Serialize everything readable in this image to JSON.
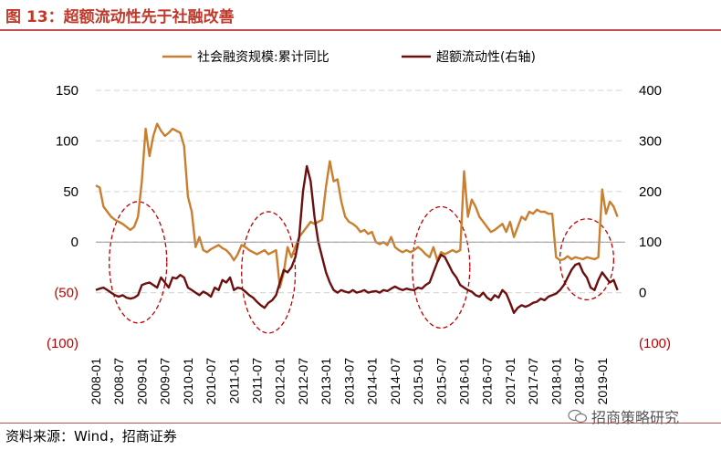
{
  "header": {
    "title": "图 13：超额流动性先于社融改善"
  },
  "footer": {
    "source": "资料来源：Wind，招商证券",
    "watermark": "招商策略研究"
  },
  "colors": {
    "series1": "#c97f2e",
    "series2": "#6b0f0f",
    "negative_tick": "#c00000",
    "circle": "#c00000",
    "grid": "#d9d9d9",
    "title": "#c0392b"
  },
  "chart_data": {
    "type": "line",
    "title": "",
    "legend_position": "top",
    "grid": true,
    "left_axis": {
      "ylim": [
        -100,
        150
      ],
      "ticks": [
        150,
        100,
        50,
        0,
        -50,
        -100
      ],
      "tick_labels": [
        "150",
        "100",
        "50",
        "0",
        "(50)",
        "(100)"
      ]
    },
    "right_axis": {
      "ylim": [
        -100,
        400
      ],
      "ticks": [
        400,
        300,
        200,
        100,
        0,
        -100
      ],
      "tick_labels": [
        "400",
        "300",
        "200",
        "100",
        "0",
        "(100)"
      ]
    },
    "x_tick_labels": [
      "2008-01",
      "2008-07",
      "2009-01",
      "2009-07",
      "2010-01",
      "2010-07",
      "2011-01",
      "2011-07",
      "2012-01",
      "2012-07",
      "2013-01",
      "2013-07",
      "2014-01",
      "2014-07",
      "2015-01",
      "2015-07",
      "2016-01",
      "2016-07",
      "2017-01",
      "2017-07",
      "2018-01",
      "2018-07",
      "2019-01"
    ],
    "x_start": "2008-01",
    "x_end": "2019-07",
    "series": [
      {
        "name": "社会融资规模:累计同比",
        "axis": "left",
        "points": [
          [
            "2008-01",
            56
          ],
          [
            "2008-02",
            54
          ],
          [
            "2008-03",
            35
          ],
          [
            "2008-04",
            30
          ],
          [
            "2008-05",
            25
          ],
          [
            "2008-06",
            22
          ],
          [
            "2008-07",
            20
          ],
          [
            "2008-08",
            18
          ],
          [
            "2008-09",
            15
          ],
          [
            "2008-10",
            12
          ],
          [
            "2008-11",
            15
          ],
          [
            "2008-12",
            25
          ],
          [
            "2009-01",
            60
          ],
          [
            "2009-02",
            112
          ],
          [
            "2009-03",
            85
          ],
          [
            "2009-04",
            105
          ],
          [
            "2009-05",
            117
          ],
          [
            "2009-06",
            110
          ],
          [
            "2009-07",
            105
          ],
          [
            "2009-08",
            108
          ],
          [
            "2009-09",
            112
          ],
          [
            "2009-10",
            110
          ],
          [
            "2009-11",
            108
          ],
          [
            "2009-12",
            95
          ],
          [
            "2010-01",
            45
          ],
          [
            "2010-02",
            30
          ],
          [
            "2010-03",
            -5
          ],
          [
            "2010-04",
            5
          ],
          [
            "2010-05",
            -8
          ],
          [
            "2010-06",
            -10
          ],
          [
            "2010-07",
            -7
          ],
          [
            "2010-08",
            -5
          ],
          [
            "2010-09",
            -3
          ],
          [
            "2010-10",
            -6
          ],
          [
            "2010-11",
            -8
          ],
          [
            "2010-12",
            -12
          ],
          [
            "2011-01",
            -18
          ],
          [
            "2011-02",
            -12
          ],
          [
            "2011-03",
            -3
          ],
          [
            "2011-04",
            -5
          ],
          [
            "2011-05",
            -8
          ],
          [
            "2011-06",
            -10
          ],
          [
            "2011-07",
            -12
          ],
          [
            "2011-08",
            -10
          ],
          [
            "2011-09",
            -8
          ],
          [
            "2011-10",
            -12
          ],
          [
            "2011-11",
            -10
          ],
          [
            "2011-12",
            -8
          ],
          [
            "2012-01",
            -45
          ],
          [
            "2012-02",
            -30
          ],
          [
            "2012-03",
            -5
          ],
          [
            "2012-04",
            -15
          ],
          [
            "2012-05",
            -5
          ],
          [
            "2012-06",
            5
          ],
          [
            "2012-07",
            10
          ],
          [
            "2012-08",
            15
          ],
          [
            "2012-09",
            20
          ],
          [
            "2012-10",
            18
          ],
          [
            "2012-11",
            20
          ],
          [
            "2012-12",
            22
          ],
          [
            "2013-01",
            55
          ],
          [
            "2013-02",
            80
          ],
          [
            "2013-03",
            60
          ],
          [
            "2013-04",
            62
          ],
          [
            "2013-05",
            40
          ],
          [
            "2013-06",
            25
          ],
          [
            "2013-07",
            20
          ],
          [
            "2013-08",
            18
          ],
          [
            "2013-09",
            15
          ],
          [
            "2013-10",
            10
          ],
          [
            "2013-11",
            12
          ],
          [
            "2013-12",
            8
          ],
          [
            "2014-01",
            10
          ],
          [
            "2014-02",
            0
          ],
          [
            "2014-03",
            -2
          ],
          [
            "2014-04",
            0
          ],
          [
            "2014-05",
            -3
          ],
          [
            "2014-06",
            5
          ],
          [
            "2014-07",
            -5
          ],
          [
            "2014-08",
            -8
          ],
          [
            "2014-09",
            -10
          ],
          [
            "2014-10",
            -8
          ],
          [
            "2014-11",
            -10
          ],
          [
            "2014-12",
            -8
          ],
          [
            "2015-01",
            -5
          ],
          [
            "2015-02",
            -8
          ],
          [
            "2015-03",
            -12
          ],
          [
            "2015-04",
            -15
          ],
          [
            "2015-05",
            -5
          ],
          [
            "2015-06",
            -18
          ],
          [
            "2015-07",
            -10
          ],
          [
            "2015-08",
            -12
          ],
          [
            "2015-09",
            -10
          ],
          [
            "2015-10",
            -8
          ],
          [
            "2015-11",
            -10
          ],
          [
            "2015-12",
            -8
          ],
          [
            "2016-01",
            70
          ],
          [
            "2016-02",
            25
          ],
          [
            "2016-03",
            42
          ],
          [
            "2016-04",
            35
          ],
          [
            "2016-05",
            25
          ],
          [
            "2016-06",
            20
          ],
          [
            "2016-07",
            15
          ],
          [
            "2016-08",
            10
          ],
          [
            "2016-09",
            12
          ],
          [
            "2016-10",
            15
          ],
          [
            "2016-11",
            18
          ],
          [
            "2016-12",
            10
          ],
          [
            "2017-01",
            20
          ],
          [
            "2017-02",
            5
          ],
          [
            "2017-03",
            15
          ],
          [
            "2017-04",
            25
          ],
          [
            "2017-05",
            22
          ],
          [
            "2017-06",
            30
          ],
          [
            "2017-07",
            28
          ],
          [
            "2017-08",
            32
          ],
          [
            "2017-09",
            30
          ],
          [
            "2017-10",
            30
          ],
          [
            "2017-11",
            28
          ],
          [
            "2017-12",
            28
          ],
          [
            "2018-01",
            -15
          ],
          [
            "2018-02",
            -18
          ],
          [
            "2018-03",
            -17
          ],
          [
            "2018-04",
            -14
          ],
          [
            "2018-05",
            -17
          ],
          [
            "2018-06",
            -15
          ],
          [
            "2018-07",
            -16
          ],
          [
            "2018-08",
            -17
          ],
          [
            "2018-09",
            -15
          ],
          [
            "2018-10",
            -16
          ],
          [
            "2018-11",
            -17
          ],
          [
            "2018-12",
            -15
          ],
          [
            "2019-01",
            52
          ],
          [
            "2019-02",
            28
          ],
          [
            "2019-03",
            40
          ],
          [
            "2019-04",
            35
          ],
          [
            "2019-05",
            25
          ]
        ]
      },
      {
        "name": "超额流动性(右轴)",
        "axis": "right",
        "points": [
          [
            "2008-01",
            5
          ],
          [
            "2008-02",
            8
          ],
          [
            "2008-03",
            10
          ],
          [
            "2008-04",
            5
          ],
          [
            "2008-05",
            0
          ],
          [
            "2008-06",
            -5
          ],
          [
            "2008-07",
            -8
          ],
          [
            "2008-08",
            -5
          ],
          [
            "2008-09",
            -10
          ],
          [
            "2008-10",
            -12
          ],
          [
            "2008-11",
            -10
          ],
          [
            "2008-12",
            -5
          ],
          [
            "2009-01",
            15
          ],
          [
            "2009-02",
            18
          ],
          [
            "2009-03",
            20
          ],
          [
            "2009-04",
            15
          ],
          [
            "2009-05",
            10
          ],
          [
            "2009-06",
            30
          ],
          [
            "2009-07",
            20
          ],
          [
            "2009-08",
            10
          ],
          [
            "2009-09",
            30
          ],
          [
            "2009-10",
            28
          ],
          [
            "2009-11",
            35
          ],
          [
            "2009-12",
            30
          ],
          [
            "2010-01",
            10
          ],
          [
            "2010-02",
            5
          ],
          [
            "2010-03",
            0
          ],
          [
            "2010-04",
            -5
          ],
          [
            "2010-05",
            2
          ],
          [
            "2010-06",
            -2
          ],
          [
            "2010-07",
            -8
          ],
          [
            "2010-08",
            10
          ],
          [
            "2010-09",
            5
          ],
          [
            "2010-10",
            25
          ],
          [
            "2010-11",
            20
          ],
          [
            "2010-12",
            30
          ],
          [
            "2011-01",
            5
          ],
          [
            "2011-02",
            10
          ],
          [
            "2011-03",
            8
          ],
          [
            "2011-04",
            2
          ],
          [
            "2011-05",
            -5
          ],
          [
            "2011-06",
            -10
          ],
          [
            "2011-07",
            -18
          ],
          [
            "2011-08",
            -25
          ],
          [
            "2011-09",
            -30
          ],
          [
            "2011-10",
            -20
          ],
          [
            "2011-11",
            -15
          ],
          [
            "2011-12",
            -5
          ],
          [
            "2012-01",
            20
          ],
          [
            "2012-02",
            45
          ],
          [
            "2012-03",
            40
          ],
          [
            "2012-04",
            50
          ],
          [
            "2012-05",
            70
          ],
          [
            "2012-06",
            110
          ],
          [
            "2012-07",
            200
          ],
          [
            "2012-08",
            250
          ],
          [
            "2012-09",
            220
          ],
          [
            "2012-10",
            150
          ],
          [
            "2012-11",
            100
          ],
          [
            "2012-12",
            70
          ],
          [
            "2013-01",
            40
          ],
          [
            "2013-02",
            20
          ],
          [
            "2013-03",
            5
          ],
          [
            "2013-04",
            0
          ],
          [
            "2013-05",
            5
          ],
          [
            "2013-06",
            2
          ],
          [
            "2013-07",
            0
          ],
          [
            "2013-08",
            5
          ],
          [
            "2013-09",
            0
          ],
          [
            "2013-10",
            2
          ],
          [
            "2013-11",
            5
          ],
          [
            "2013-12",
            0
          ],
          [
            "2014-01",
            2
          ],
          [
            "2014-02",
            3
          ],
          [
            "2014-03",
            0
          ],
          [
            "2014-04",
            5
          ],
          [
            "2014-05",
            3
          ],
          [
            "2014-06",
            8
          ],
          [
            "2014-07",
            12
          ],
          [
            "2014-08",
            8
          ],
          [
            "2014-09",
            5
          ],
          [
            "2014-10",
            8
          ],
          [
            "2014-11",
            6
          ],
          [
            "2014-12",
            5
          ],
          [
            "2015-01",
            10
          ],
          [
            "2015-02",
            8
          ],
          [
            "2015-03",
            15
          ],
          [
            "2015-04",
            20
          ],
          [
            "2015-05",
            40
          ],
          [
            "2015-06",
            60
          ],
          [
            "2015-07",
            75
          ],
          [
            "2015-08",
            70
          ],
          [
            "2015-09",
            55
          ],
          [
            "2015-10",
            40
          ],
          [
            "2015-11",
            30
          ],
          [
            "2015-12",
            15
          ],
          [
            "2016-01",
            10
          ],
          [
            "2016-02",
            5
          ],
          [
            "2016-03",
            2
          ],
          [
            "2016-04",
            -5
          ],
          [
            "2016-05",
            -8
          ],
          [
            "2016-06",
            0
          ],
          [
            "2016-07",
            -10
          ],
          [
            "2016-08",
            -15
          ],
          [
            "2016-09",
            -5
          ],
          [
            "2016-10",
            -10
          ],
          [
            "2016-11",
            5
          ],
          [
            "2016-12",
            -2
          ],
          [
            "2017-01",
            -20
          ],
          [
            "2017-02",
            -40
          ],
          [
            "2017-03",
            -30
          ],
          [
            "2017-04",
            -25
          ],
          [
            "2017-05",
            -28
          ],
          [
            "2017-06",
            -25
          ],
          [
            "2017-07",
            -20
          ],
          [
            "2017-08",
            -18
          ],
          [
            "2017-09",
            -12
          ],
          [
            "2017-10",
            -15
          ],
          [
            "2017-11",
            -8
          ],
          [
            "2017-12",
            -5
          ],
          [
            "2018-01",
            -2
          ],
          [
            "2018-02",
            5
          ],
          [
            "2018-03",
            15
          ],
          [
            "2018-04",
            30
          ],
          [
            "2018-05",
            45
          ],
          [
            "2018-06",
            55
          ],
          [
            "2018-07",
            58
          ],
          [
            "2018-08",
            40
          ],
          [
            "2018-09",
            30
          ],
          [
            "2018-10",
            10
          ],
          [
            "2018-11",
            5
          ],
          [
            "2018-12",
            25
          ],
          [
            "2019-01",
            40
          ],
          [
            "2019-02",
            30
          ],
          [
            "2019-03",
            20
          ],
          [
            "2019-04",
            25
          ],
          [
            "2019-05",
            5
          ]
        ]
      }
    ],
    "annotations": [
      {
        "type": "dashed-ellipse",
        "x_center": "2008-12",
        "y_center_left": -20,
        "x_span_months": 15,
        "y_span_left": 120
      },
      {
        "type": "dashed-ellipse",
        "x_center": "2011-10",
        "y_center_left": -30,
        "x_span_months": 14,
        "y_span_left": 120
      },
      {
        "type": "dashed-ellipse",
        "x_center": "2015-07",
        "y_center_left": -25,
        "x_span_months": 15,
        "y_span_left": 120
      },
      {
        "type": "dashed-ellipse",
        "x_center": "2018-09",
        "y_center_left": -17,
        "x_span_months": 14,
        "y_span_left": 80
      }
    ]
  }
}
